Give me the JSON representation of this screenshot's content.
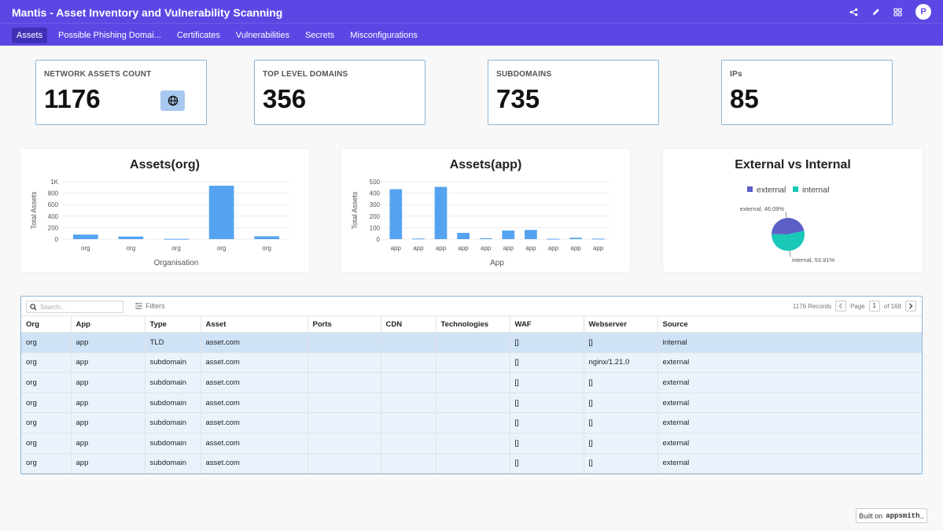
{
  "app": {
    "title": "Mantis - Asset Inventory and Vulnerability Scanning",
    "user_initial": "P"
  },
  "header_icons": [
    "share-icon",
    "pencil-icon",
    "apps-grid-icon"
  ],
  "nav": {
    "tabs": [
      {
        "label": "Assets",
        "active": true
      },
      {
        "label": "Possible Phishing Domai..."
      },
      {
        "label": "Certificates"
      },
      {
        "label": "Vulnerabilities"
      },
      {
        "label": "Secrets"
      },
      {
        "label": "Misconfigurations"
      }
    ]
  },
  "stats": [
    {
      "label": "NETWORK ASSETS COUNT",
      "value": "1176",
      "icon": "globe-icon"
    },
    {
      "label": "TOP LEVEL DOMAINS",
      "value": "356"
    },
    {
      "label": "SUBDOMAINS",
      "value": "735"
    },
    {
      "label": "IPs",
      "value": "85"
    }
  ],
  "chart_data": [
    {
      "type": "bar",
      "title": "Assets(org)",
      "xlabel": "Organisation",
      "ylabel": "Total Assets",
      "categories": [
        "org",
        "org",
        "org",
        "org",
        "org"
      ],
      "values": [
        80,
        45,
        5,
        930,
        50
      ],
      "ylim": [
        0,
        1000
      ],
      "yticks": [
        "0",
        "200",
        "400",
        "600",
        "800",
        "1K"
      ],
      "color": "#55a3f0"
    },
    {
      "type": "bar",
      "title": "Assets(app)",
      "xlabel": "App",
      "ylabel": "Total Assets",
      "categories": [
        "app",
        "app",
        "app",
        "app",
        "app",
        "app",
        "app",
        "app",
        "app",
        "app"
      ],
      "values": [
        435,
        5,
        455,
        55,
        8,
        75,
        80,
        3,
        12,
        4
      ],
      "ylim": [
        0,
        500
      ],
      "yticks": [
        "0",
        "100",
        "200",
        "300",
        "400",
        "500"
      ],
      "color": "#55a3f0"
    },
    {
      "type": "pie",
      "title": "External vs Internal",
      "slices": [
        {
          "name": "external",
          "value": 46.09,
          "label": "external, 46.09%",
          "color": "#5b5fc7"
        },
        {
          "name": "internal",
          "value": 53.91,
          "label": "internal, 53.91%",
          "color": "#1ac8b8"
        }
      ],
      "legend": "top"
    }
  ],
  "table": {
    "search_placeholder": "Search...",
    "filters_label": "Filters",
    "records": "1176 Records",
    "page_label": "Page",
    "page": "1",
    "of_pages": "of 168",
    "columns": [
      "Org",
      "App",
      "Type",
      "Asset",
      "Ports",
      "CDN",
      "Technologies",
      "WAF",
      "Webserver",
      "Source"
    ],
    "rows": [
      [
        "org",
        "app",
        "TLD",
        "asset.com",
        "",
        "",
        "",
        "[]",
        "[]",
        "internal"
      ],
      [
        "org",
        "app",
        "subdomain",
        "asset.com",
        "",
        "",
        "",
        "[]",
        "nginx/1.21.0",
        "external"
      ],
      [
        "org",
        "app",
        "subdomain",
        "asset.com",
        "",
        "",
        "",
        "[]",
        "[]",
        "external"
      ],
      [
        "org",
        "app",
        "subdomain",
        "asset.com",
        "",
        "",
        "",
        "[]",
        "[]",
        "external"
      ],
      [
        "org",
        "app",
        "subdomain",
        "asset.com",
        "",
        "",
        "",
        "[]",
        "[]",
        "external"
      ],
      [
        "org",
        "app",
        "subdomain",
        "asset.com",
        "",
        "",
        "",
        "[]",
        "[]",
        "external"
      ],
      [
        "org",
        "app",
        "subdomain",
        "asset.com",
        "",
        "",
        "",
        "[]",
        "[]",
        "external"
      ]
    ]
  },
  "footer": {
    "built_on": "Built on",
    "brand": "appsmith_"
  }
}
